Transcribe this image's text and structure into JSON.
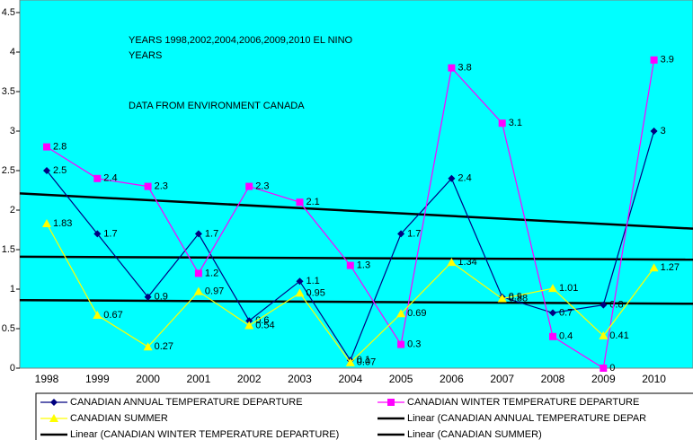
{
  "chart_data": {
    "type": "line",
    "annotations": [
      "YEARS 1998,2002,2004,2006,2009,2010 EL NINO",
      "YEARS",
      "DATA FROM ENVIRONMENT CANADA"
    ],
    "categories": [
      "1998",
      "1999",
      "2000",
      "2001",
      "2002",
      "2003",
      "2004",
      "2005",
      "2006",
      "2007",
      "2008",
      "2009",
      "2010"
    ],
    "series": [
      {
        "name": "CANADIAN ANNUAL TEMPERATURE  DEPARTURE",
        "color": "#000080",
        "marker": "diamond",
        "values": [
          2.5,
          1.7,
          0.9,
          1.7,
          0.6,
          1.1,
          0.1,
          1.7,
          2.4,
          0.9,
          0.7,
          0.8,
          3
        ]
      },
      {
        "name": "CANADIAN WINTER TEMPERATURE DEPARTURE",
        "color": "#ff00ff",
        "marker": "square",
        "values": [
          2.8,
          2.4,
          2.3,
          1.2,
          2.3,
          2.1,
          1.3,
          0.3,
          3.8,
          3.1,
          0.4,
          0,
          3.9
        ]
      },
      {
        "name": "CANADIAN SUMMER",
        "color": "#ffff00",
        "marker": "triangle",
        "values": [
          1.83,
          0.67,
          0.27,
          0.97,
          0.54,
          0.95,
          0.07,
          0.69,
          1.34,
          0.88,
          1.01,
          0.41,
          1.27
        ]
      }
    ],
    "trendlines": [
      {
        "name": "Linear (CANADIAN ANNUAL TEMPERATURE  DEPAR",
        "series": 0,
        "color": "#000000"
      },
      {
        "name": "Linear (CANADIAN WINTER TEMPERATURE DEPARTURE)",
        "series": 1,
        "color": "#000000"
      },
      {
        "name": "Linear (CANADIAN SUMMER)",
        "series": 2,
        "color": "#000000"
      }
    ],
    "ylim": [
      0,
      4.5
    ],
    "yticks": [
      0,
      0.5,
      1,
      1.5,
      2,
      2.5,
      3,
      3.5,
      4,
      4.5
    ],
    "plot_background": "#00ffff"
  }
}
